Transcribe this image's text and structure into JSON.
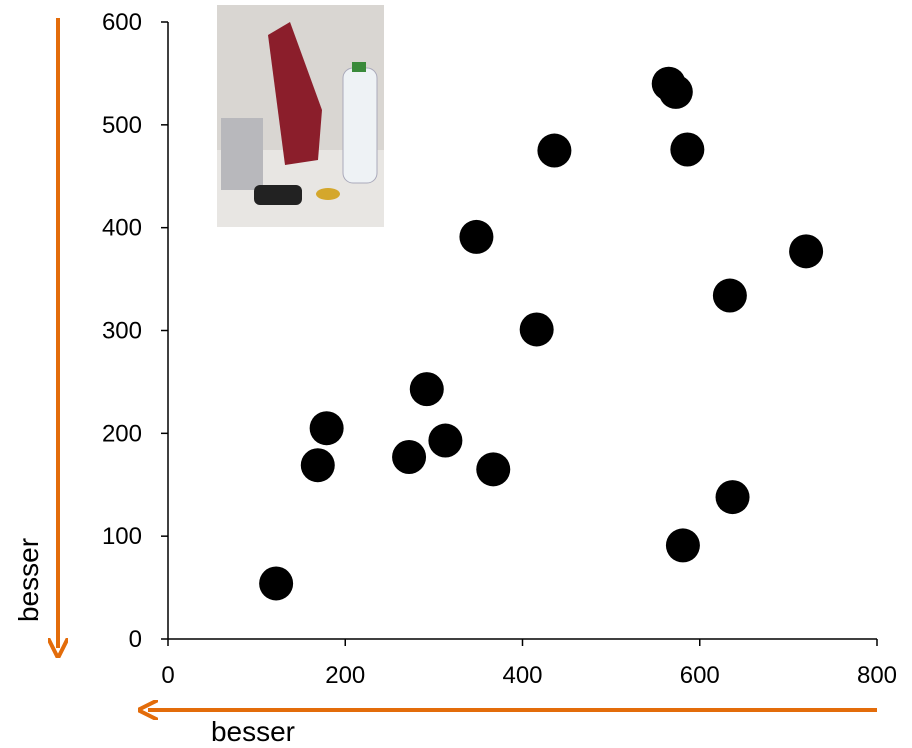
{
  "chart_data": {
    "type": "scatter",
    "x": [
      122,
      169,
      179,
      272,
      292,
      313,
      367,
      348,
      416,
      436,
      565,
      573,
      586,
      720,
      634,
      637,
      581
    ],
    "y": [
      54,
      169,
      205,
      177,
      243,
      193,
      165,
      391,
      301,
      475,
      540,
      532,
      476,
      377,
      334,
      138,
      91
    ],
    "color": "#000000",
    "xlim": [
      0,
      800
    ],
    "ylim": [
      0,
      600
    ],
    "xticks": [
      0,
      200,
      400,
      600,
      800
    ],
    "yticks": [
      0,
      100,
      200,
      300,
      400,
      500,
      600
    ],
    "annotations": [
      "besser",
      "besser"
    ]
  }
}
